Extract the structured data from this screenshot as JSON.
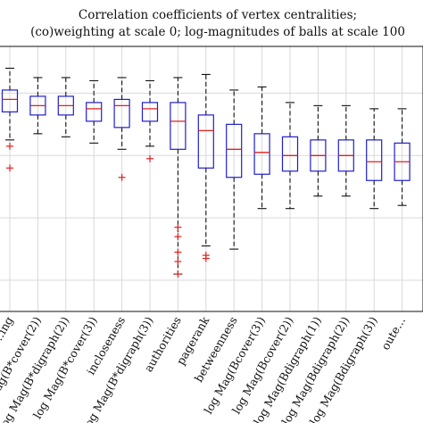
{
  "chart_data": {
    "type": "box",
    "title_lines": [
      "Correlation coefficients of vertex centralities;",
      "(co)weighting at scale 0; log-magnitudes of balls at scale 100"
    ],
    "ylim": [
      0.2,
      1.05
    ],
    "grid": true,
    "categories": [
      "…ing",
      "log Mag(B*cover(2))",
      "log Mag(B*digraph(2))",
      "log Mag(B*cover(3))",
      "incloseness",
      "log Mag(B*digraph(3))",
      "authorities",
      "pagerank",
      "betweenness",
      "log Mag(Bcover(3))",
      "log Mag(Bcover(2))",
      "log Mag(Bdigraph(1))",
      "log Mag(Bdigraph(2))",
      "log Mag(Bdigraph(3))",
      "oute…"
    ],
    "boxes": [
      {
        "whisker_low": 0.75,
        "q1": 0.84,
        "median": 0.88,
        "q3": 0.91,
        "whisker_high": 0.98,
        "outliers": [
          0.73,
          0.66
        ]
      },
      {
        "whisker_low": 0.77,
        "q1": 0.83,
        "median": 0.86,
        "q3": 0.89,
        "whisker_high": 0.95,
        "outliers": []
      },
      {
        "whisker_low": 0.76,
        "q1": 0.83,
        "median": 0.86,
        "q3": 0.89,
        "whisker_high": 0.95,
        "outliers": []
      },
      {
        "whisker_low": 0.74,
        "q1": 0.81,
        "median": 0.85,
        "q3": 0.87,
        "whisker_high": 0.94,
        "outliers": []
      },
      {
        "whisker_low": 0.72,
        "q1": 0.79,
        "median": 0.86,
        "q3": 0.88,
        "whisker_high": 0.95,
        "outliers": [
          0.63
        ]
      },
      {
        "whisker_low": 0.73,
        "q1": 0.81,
        "median": 0.85,
        "q3": 0.87,
        "whisker_high": 0.94,
        "outliers": [
          0.69
        ]
      },
      {
        "whisker_low": 0.32,
        "q1": 0.72,
        "median": 0.81,
        "q3": 0.87,
        "whisker_high": 0.95,
        "outliers": [
          0.47,
          0.44,
          0.39,
          0.36,
          0.32
        ]
      },
      {
        "whisker_low": 0.41,
        "q1": 0.66,
        "median": 0.78,
        "q3": 0.83,
        "whisker_high": 0.96,
        "outliers": [
          0.38,
          0.37
        ]
      },
      {
        "whisker_low": 0.4,
        "q1": 0.63,
        "median": 0.72,
        "q3": 0.8,
        "whisker_high": 0.91,
        "outliers": []
      },
      {
        "whisker_low": 0.53,
        "q1": 0.64,
        "median": 0.71,
        "q3": 0.77,
        "whisker_high": 0.92,
        "outliers": []
      },
      {
        "whisker_low": 0.53,
        "q1": 0.65,
        "median": 0.7,
        "q3": 0.76,
        "whisker_high": 0.87,
        "outliers": []
      },
      {
        "whisker_low": 0.57,
        "q1": 0.65,
        "median": 0.7,
        "q3": 0.75,
        "whisker_high": 0.86,
        "outliers": []
      },
      {
        "whisker_low": 0.57,
        "q1": 0.65,
        "median": 0.7,
        "q3": 0.75,
        "whisker_high": 0.86,
        "outliers": []
      },
      {
        "whisker_low": 0.53,
        "q1": 0.62,
        "median": 0.68,
        "q3": 0.75,
        "whisker_high": 0.85,
        "outliers": []
      },
      {
        "whisker_low": 0.54,
        "q1": 0.62,
        "median": 0.68,
        "q3": 0.74,
        "whisker_high": 0.85,
        "outliers": []
      }
    ]
  }
}
